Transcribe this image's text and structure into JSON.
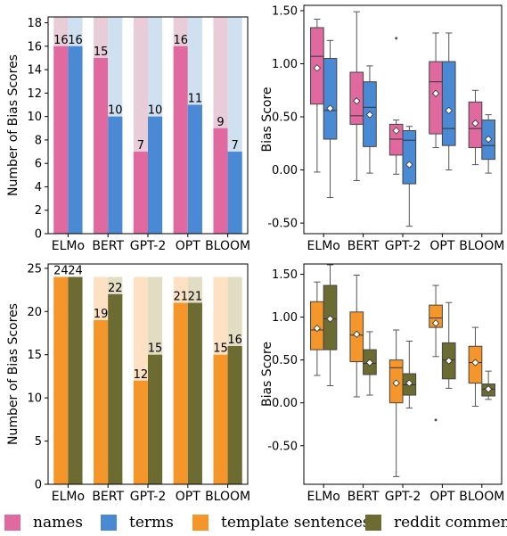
{
  "colors": {
    "names": "#e06a9f",
    "terms": "#4a89d4",
    "template_sentences": "#f5962a",
    "reddit_comments": "#6b6b32",
    "names_light": "#e8ccd8",
    "terms_light": "#cfe0f1",
    "template_light": "#fde1c2",
    "reddit_light": "#e1dcc2"
  },
  "legend": [
    {
      "label": "names",
      "color_key": "names"
    },
    {
      "label": "terms",
      "color_key": "terms"
    },
    {
      "label": "template sentences",
      "color_key": "template_sentences"
    },
    {
      "label": "reddit comments",
      "color_key": "reddit_comments"
    }
  ],
  "chart_data": [
    {
      "type": "bar",
      "ylabel": "Number of Bias Scores",
      "ylim": [
        0,
        18.5
      ],
      "yticks": [
        0,
        2,
        4,
        6,
        8,
        10,
        12,
        14,
        16,
        18
      ],
      "categories": [
        "ELMo",
        "BERT",
        "GPT-2",
        "OPT",
        "BLOOM"
      ],
      "max_value": 18.5,
      "series": [
        {
          "color_key": "names",
          "bg_key": "names_light",
          "values": [
            16,
            15,
            7,
            16,
            9
          ],
          "labels": [
            "16",
            "15",
            "7",
            "16",
            "9"
          ]
        },
        {
          "color_key": "terms",
          "bg_key": "terms_light",
          "values": [
            16,
            10,
            10,
            11,
            7
          ],
          "labels": [
            "16",
            "10",
            "10",
            "11",
            "7"
          ]
        }
      ]
    },
    {
      "type": "box",
      "ylabel": "Bias Score",
      "ylim": [
        -0.6,
        1.55
      ],
      "yticks": [
        "-0.50",
        "0.00",
        "0.50",
        "1.00",
        "1.50"
      ],
      "categories": [
        "ELMo",
        "BERT",
        "GPT-2",
        "OPT",
        "BLOOM"
      ],
      "series": [
        {
          "color_key": "names",
          "boxes": [
            {
              "min": -0.02,
              "q1": 0.62,
              "median": 1.07,
              "q3": 1.34,
              "max": 1.42,
              "mean": 0.96,
              "outliers": []
            },
            {
              "min": -0.1,
              "q1": 0.43,
              "median": 0.51,
              "q3": 0.92,
              "max": 1.49,
              "mean": 0.65,
              "outliers": []
            },
            {
              "min": -0.04,
              "q1": 0.14,
              "median": 0.29,
              "q3": 0.43,
              "max": 0.47,
              "mean": 0.37,
              "outliers": [
                1.24
              ]
            },
            {
              "min": 0.21,
              "q1": 0.34,
              "median": 0.83,
              "q3": 1.02,
              "max": 1.29,
              "mean": 0.72,
              "outliers": []
            },
            {
              "min": 0.05,
              "q1": 0.21,
              "median": 0.39,
              "q3": 0.64,
              "max": 0.75,
              "mean": 0.44,
              "outliers": []
            }
          ]
        },
        {
          "color_key": "terms",
          "boxes": [
            {
              "min": -0.26,
              "q1": 0.29,
              "median": 0.56,
              "q3": 1.05,
              "max": 1.22,
              "mean": 0.58,
              "outliers": []
            },
            {
              "min": -0.03,
              "q1": 0.22,
              "median": 0.59,
              "q3": 0.83,
              "max": 0.98,
              "mean": 0.52,
              "outliers": []
            },
            {
              "min": -0.53,
              "q1": -0.13,
              "median": 0.28,
              "q3": 0.37,
              "max": 0.41,
              "mean": 0.05,
              "outliers": []
            },
            {
              "min": 0.0,
              "q1": 0.23,
              "median": 0.39,
              "q3": 1.02,
              "max": 1.29,
              "mean": 0.56,
              "outliers": []
            },
            {
              "min": -0.03,
              "q1": 0.1,
              "median": 0.23,
              "q3": 0.47,
              "max": 0.52,
              "mean": 0.29,
              "outliers": []
            }
          ]
        }
      ]
    },
    {
      "type": "bar",
      "ylabel": "Number of Bias Scores",
      "ylim": [
        0,
        25.5
      ],
      "yticks": [
        0,
        5,
        10,
        15,
        20,
        25
      ],
      "categories": [
        "ELMo",
        "BERT",
        "GPT-2",
        "OPT",
        "BLOOM"
      ],
      "max_value": 24,
      "series": [
        {
          "color_key": "template_sentences",
          "bg_key": "template_light",
          "values": [
            24,
            19,
            12,
            21,
            15
          ],
          "labels": [
            "24",
            "19",
            "12",
            "21",
            "15"
          ]
        },
        {
          "color_key": "reddit_comments",
          "bg_key": "reddit_light",
          "values": [
            24,
            22,
            15,
            21,
            16
          ],
          "labels": [
            "24",
            "22",
            "15",
            "21",
            "16"
          ]
        }
      ]
    },
    {
      "type": "box",
      "ylabel": "Bias Score",
      "ylim": [
        -0.95,
        1.62
      ],
      "yticks": [
        "-0.50",
        "0.00",
        "0.50",
        "1.00",
        "1.50"
      ],
      "categories": [
        "ELMo",
        "BERT",
        "GPT-2",
        "OPT",
        "BLOOM"
      ],
      "series": [
        {
          "color_key": "template_sentences",
          "boxes": [
            {
              "min": 0.32,
              "q1": 0.62,
              "median": 0.85,
              "q3": 1.18,
              "max": 1.41,
              "mean": 0.87,
              "outliers": []
            },
            {
              "min": 0.07,
              "q1": 0.48,
              "median": 0.79,
              "q3": 1.06,
              "max": 1.49,
              "mean": 0.8,
              "outliers": []
            },
            {
              "min": -0.86,
              "q1": 0.0,
              "median": 0.41,
              "q3": 0.5,
              "max": 0.85,
              "mean": 0.23,
              "outliers": []
            },
            {
              "min": 0.54,
              "q1": 0.88,
              "median": 0.99,
              "q3": 1.14,
              "max": 1.37,
              "mean": 0.93,
              "outliers": [
                -0.2
              ]
            },
            {
              "min": -0.04,
              "q1": 0.23,
              "median": 0.47,
              "q3": 0.66,
              "max": 0.88,
              "mean": 0.47,
              "outliers": []
            }
          ]
        },
        {
          "color_key": "reddit_comments",
          "boxes": [
            {
              "min": 0.2,
              "q1": 0.62,
              "median": 0.98,
              "q3": 1.37,
              "max": 1.61,
              "mean": 0.98,
              "outliers": []
            },
            {
              "min": 0.09,
              "q1": 0.33,
              "median": 0.46,
              "q3": 0.62,
              "max": 0.83,
              "mean": 0.47,
              "outliers": []
            },
            {
              "min": -0.06,
              "q1": 0.09,
              "median": 0.21,
              "q3": 0.34,
              "max": 0.72,
              "mean": 0.23,
              "outliers": []
            },
            {
              "min": 0.17,
              "q1": 0.28,
              "median": 0.5,
              "q3": 0.7,
              "max": 1.17,
              "mean": 0.49,
              "outliers": []
            },
            {
              "min": 0.04,
              "q1": 0.08,
              "median": 0.16,
              "q3": 0.22,
              "max": 0.37,
              "mean": 0.16,
              "outliers": []
            }
          ]
        }
      ]
    }
  ]
}
